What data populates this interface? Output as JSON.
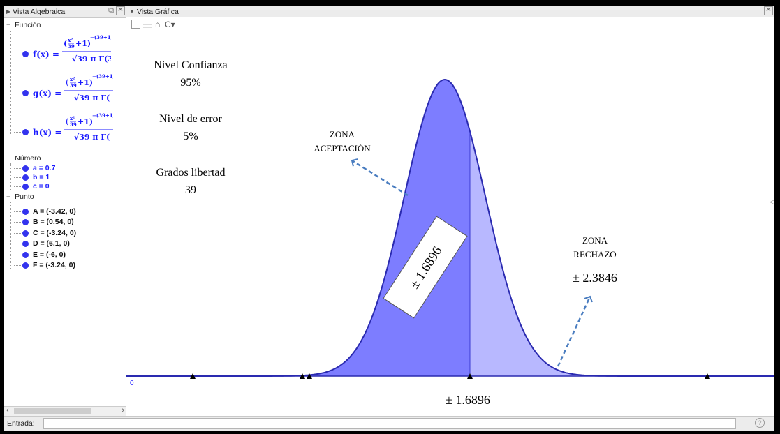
{
  "algebra": {
    "title": "Vista Algebraica",
    "section_funcion": "Función",
    "functions": [
      {
        "name": "f(x) =",
        "num": "(x²/39 + 1)^−((39+1)/2)",
        "den": "√39 π Γ(3"
      },
      {
        "name": "g(x) =",
        "num": "(x²/39 + 1)^−((39+1)/2)",
        "den": "√39 π Γ("
      },
      {
        "name": "h(x) =",
        "num": "(x²/39 + 1)^−((39+1)/2)",
        "den": "√39 π Γ("
      }
    ],
    "section_numero": "Número",
    "numbers": [
      "a = 0.7",
      "b = 1",
      "c = 0"
    ],
    "section_punto": "Punto",
    "points": [
      "A = (-3.42, 0)",
      "B = (0.54, 0)",
      "C = (-3.24, 0)",
      "D = (6.1, 0)",
      "E = (-6, 0)",
      "F = (-3.24, 0)"
    ]
  },
  "graphics": {
    "title": "Vista Gráfica",
    "nivel_confianza_label": "Nivel Confianza",
    "nivel_confianza_value": "95%",
    "nivel_error_label": "Nivel de error",
    "nivel_error_value": "5%",
    "grados_label": "Grados libertad",
    "grados_value": "39",
    "zona_aceptacion_1": "ZONA",
    "zona_aceptacion_2": "ACEPTACIÓN",
    "zona_rechazo_1": "ZONA",
    "zona_rechazo_2": "RECHAZO",
    "rechazo_value": "± 2.3846",
    "box_value": "± 1.6896",
    "axis_value": "± 1.6896",
    "axis_tick_label": "0"
  },
  "input": {
    "label": "Entrada:",
    "value": "",
    "help_icon": "help-icon"
  },
  "colors": {
    "dark_fill": "#7d7dff",
    "light_fill": "#b8b8ff",
    "curve": "#2a2ab0",
    "arrow": "#4a7dc0"
  }
}
